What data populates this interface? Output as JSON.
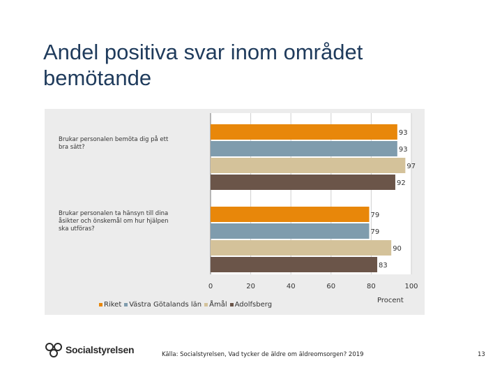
{
  "slide": {
    "title": "Andel positiva svar inom området bemötande",
    "source": "Källa: Socialstyrelsen, Vad tycker de äldre om äldreomsorgen? 2019",
    "page_number": "13",
    "logo_text": "Socialstyrelsen"
  },
  "chart_data": {
    "type": "bar",
    "orientation": "horizontal",
    "categories": [
      "Brukar personalen bemöta dig på ett bra sätt?",
      "Brukar personalen ta hänsyn till dina åsikter och önskemål om hur hjälpen ska utföras?"
    ],
    "category_lines": [
      [
        "Brukar personalen bemöta dig på ett",
        "bra sätt?"
      ],
      [
        "Brukar personalen ta hänsyn till dina",
        "åsikter och önskemål om hur hjälpen",
        "ska utföras?"
      ]
    ],
    "series": [
      {
        "name": "Riket",
        "color": "#e8870a",
        "values": [
          93,
          79
        ]
      },
      {
        "name": "Västra Götalands län",
        "color": "#7f9cad",
        "values": [
          93,
          79
        ]
      },
      {
        "name": "Åmål",
        "color": "#d4c29a",
        "values": [
          97,
          90
        ]
      },
      {
        "name": "Adolfsberg",
        "color": "#6b5549",
        "values": [
          92,
          83
        ]
      }
    ],
    "xlim": [
      0,
      100
    ],
    "xticks": [
      "0",
      "20",
      "40",
      "60",
      "80",
      "100"
    ],
    "xlabel": "Procent",
    "grid": true,
    "legend_position": "bottom"
  }
}
